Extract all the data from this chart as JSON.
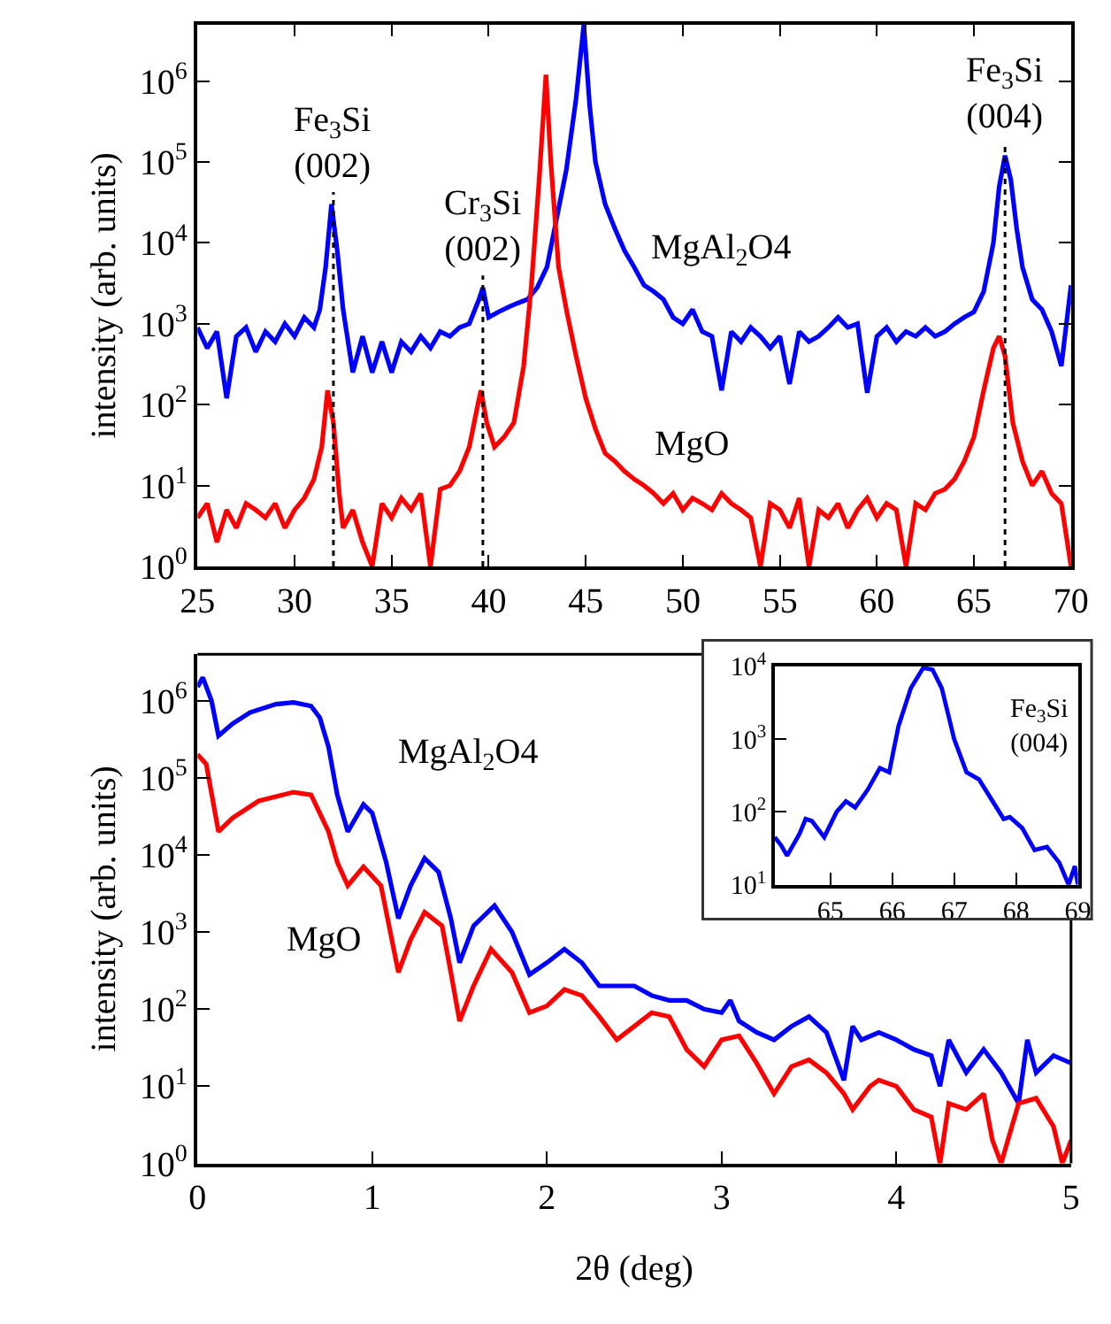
{
  "chart_data": [
    {
      "type": "line",
      "ylabel": "intensity (arb. units)",
      "log": "y",
      "marker": "none",
      "line_style": "solid",
      "xlim": [
        25,
        70
      ],
      "xticks": [
        25,
        30,
        35,
        40,
        45,
        50,
        55,
        60,
        65,
        70
      ],
      "ylim": [
        1,
        5000000
      ],
      "yticks": [
        {
          "value": 1,
          "label": "10$^{0}$"
        },
        {
          "value": 10,
          "label": "10$^{1}$"
        },
        {
          "value": 100,
          "label": "10$^{2}$"
        },
        {
          "value": 1000,
          "label": "10$^{3}$"
        },
        {
          "value": 10000,
          "label": "10$^{4}$"
        },
        {
          "value": 100000,
          "label": "10$^{5}$"
        },
        {
          "value": 1000000,
          "label": "10$^{6}$"
        }
      ],
      "ref_lines": [
        {
          "axis": "x",
          "value": 32,
          "label": "Fe$_{3}$Si\n(002)",
          "color": "#000000",
          "line_style": "dotted"
        },
        {
          "axis": "x",
          "value": 39.7,
          "label": "Cr$_{3}$Si\n(002)",
          "color": "#000000",
          "line_style": "dotted"
        },
        {
          "axis": "x",
          "value": 66.6,
          "label": "Fe$_{3}$Si\n(004)",
          "color": "#000000",
          "line_style": "dotted"
        }
      ],
      "series": [
        {
          "name": "MgAl$_{2}$O4",
          "color": "#0000ff",
          "x": [
            25,
            25.5,
            26,
            26.5,
            27,
            27.5,
            28,
            28.5,
            29,
            29.5,
            30,
            30.5,
            31,
            31.3,
            31.6,
            31.9,
            32.2,
            32.5,
            33,
            33.5,
            34,
            34.5,
            35,
            35.5,
            36,
            36.5,
            37,
            37.5,
            38,
            38.5,
            39,
            39.5,
            39.7,
            40,
            40.5,
            41,
            41.5,
            42,
            42.5,
            43,
            43.5,
            44,
            44.5,
            44.9,
            45.2,
            45.5,
            46,
            46.5,
            47,
            47.5,
            48,
            48.5,
            49,
            49.5,
            50,
            50.5,
            51,
            51.5,
            52,
            52.5,
            53,
            53.5,
            54,
            54.5,
            55,
            55.5,
            56,
            56.5,
            57,
            57.5,
            58,
            58.5,
            59,
            59.5,
            60,
            60.5,
            61,
            61.5,
            62,
            62.5,
            63,
            63.5,
            64,
            64.5,
            65,
            65.5,
            66,
            66.3,
            66.6,
            66.9,
            67.2,
            67.5,
            68,
            68.5,
            69,
            69.5,
            70
          ],
          "values": [
            900,
            500,
            800,
            120,
            700,
            900,
            450,
            800,
            600,
            1000,
            700,
            1200,
            900,
            1500,
            5000,
            30000,
            8000,
            1500,
            250,
            700,
            250,
            600,
            250,
            600,
            450,
            700,
            500,
            800,
            700,
            900,
            1000,
            2000,
            2800,
            1200,
            1400,
            1600,
            1800,
            2000,
            2800,
            5000,
            20000,
            80000,
            600000,
            5000000,
            500000,
            100000,
            30000,
            15000,
            8000,
            5000,
            3000,
            2500,
            2000,
            1200,
            1000,
            1500,
            800,
            700,
            150,
            800,
            600,
            900,
            700,
            500,
            700,
            180,
            800,
            600,
            700,
            900,
            1200,
            900,
            1000,
            140,
            700,
            900,
            600,
            800,
            700,
            900,
            700,
            800,
            1000,
            1200,
            1400,
            2500,
            10000,
            50000,
            120000,
            60000,
            15000,
            5000,
            2000,
            1500,
            800,
            300,
            3000
          ]
        },
        {
          "name": "MgO",
          "color": "#ff0000",
          "x": [
            25,
            25.5,
            26,
            26.5,
            27,
            27.5,
            28,
            28.5,
            29,
            29.5,
            30,
            30.5,
            31,
            31.4,
            31.7,
            32,
            32.3,
            32.5,
            33,
            33.5,
            34,
            34.5,
            35,
            35.5,
            36,
            36.5,
            37,
            37.5,
            38,
            38.5,
            39,
            39.4,
            39.6,
            39.9,
            40.3,
            40.8,
            41.3,
            41.8,
            42.2,
            42.6,
            42.95,
            43.2,
            43.6,
            44,
            44.5,
            45,
            45.5,
            46,
            46.5,
            47,
            47.5,
            48,
            48.5,
            49,
            49.5,
            50,
            50.5,
            51,
            51.5,
            52,
            52.5,
            53,
            53.5,
            54,
            54.5,
            55,
            55.5,
            56,
            56.5,
            57,
            57.5,
            58,
            58.5,
            59,
            59.5,
            60,
            60.5,
            61,
            61.5,
            62,
            62.5,
            63,
            63.5,
            64,
            64.5,
            65,
            65.5,
            66,
            66.3,
            66.6,
            67,
            67.5,
            68,
            68.5,
            69,
            69.5,
            70
          ],
          "values": [
            4,
            6,
            2,
            5,
            3,
            6,
            5,
            4,
            6,
            3,
            5,
            7,
            12,
            30,
            150,
            60,
            8,
            3,
            5,
            2,
            1,
            6,
            4,
            7,
            5,
            8,
            1,
            9,
            10,
            15,
            30,
            90,
            150,
            60,
            30,
            40,
            60,
            300,
            3000,
            60000,
            1200000,
            100000,
            5000,
            1500,
            400,
            120,
            50,
            25,
            20,
            15,
            12,
            10,
            8,
            6,
            8,
            5,
            7,
            6,
            5,
            8,
            6,
            5,
            4,
            1,
            6,
            5,
            3,
            7,
            1,
            5,
            4,
            6,
            3,
            5,
            7,
            4,
            6,
            5,
            1,
            6,
            5,
            8,
            9,
            12,
            20,
            40,
            150,
            500,
            700,
            400,
            60,
            20,
            10,
            15,
            8,
            6,
            1
          ]
        }
      ]
    },
    {
      "type": "line",
      "xlabel": "2θ (deg)",
      "ylabel": "intensity (arb. units)",
      "log": "y",
      "marker": "none",
      "line_style": "solid",
      "xlim": [
        0,
        5
      ],
      "xticks": [
        0,
        1,
        2,
        3,
        4,
        5
      ],
      "ylim": [
        1,
        4000000
      ],
      "yticks": [
        {
          "value": 1,
          "label": "10$^{0}$"
        },
        {
          "value": 10,
          "label": "10$^{1}$"
        },
        {
          "value": 100,
          "label": "10$^{2}$"
        },
        {
          "value": 1000,
          "label": "10$^{3}$"
        },
        {
          "value": 10000,
          "label": "10$^{4}$"
        },
        {
          "value": 100000,
          "label": "10$^{5}$"
        },
        {
          "value": 1000000,
          "label": "10$^{6}$"
        }
      ],
      "series": [
        {
          "name": "MgAl$_{2}$O4",
          "color": "#0000ff",
          "x": [
            0,
            0.03,
            0.08,
            0.12,
            0.2,
            0.3,
            0.45,
            0.55,
            0.65,
            0.7,
            0.75,
            0.8,
            0.86,
            0.95,
            1.0,
            1.08,
            1.15,
            1.22,
            1.3,
            1.38,
            1.45,
            1.5,
            1.58,
            1.7,
            1.8,
            1.9,
            2.0,
            2.1,
            2.2,
            2.3,
            2.4,
            2.5,
            2.6,
            2.7,
            2.8,
            2.9,
            3.0,
            3.05,
            3.1,
            3.2,
            3.3,
            3.4,
            3.5,
            3.6,
            3.7,
            3.75,
            3.8,
            3.9,
            4.0,
            4.1,
            4.2,
            4.25,
            4.3,
            4.4,
            4.5,
            4.6,
            4.7,
            4.75,
            4.8,
            4.9,
            5.0
          ],
          "values": [
            1500000,
            2000000,
            1000000,
            350000,
            500000,
            700000,
            900000,
            950000,
            850000,
            600000,
            250000,
            60000,
            20000,
            45000,
            35000,
            8000,
            1500,
            4000,
            9000,
            6000,
            1500,
            400,
            1200,
            2200,
            1000,
            280,
            400,
            600,
            400,
            200,
            200,
            200,
            150,
            130,
            130,
            100,
            90,
            130,
            70,
            50,
            40,
            60,
            80,
            50,
            12,
            60,
            40,
            50,
            40,
            30,
            25,
            10,
            40,
            15,
            30,
            15,
            6,
            40,
            15,
            25,
            20
          ]
        },
        {
          "name": "MgO",
          "color": "#ff0000",
          "x": [
            0,
            0.05,
            0.12,
            0.2,
            0.35,
            0.55,
            0.65,
            0.75,
            0.8,
            0.86,
            0.95,
            1.05,
            1.15,
            1.22,
            1.3,
            1.4,
            1.45,
            1.5,
            1.58,
            1.68,
            1.8,
            1.9,
            2.0,
            2.1,
            2.2,
            2.3,
            2.4,
            2.5,
            2.6,
            2.7,
            2.8,
            2.9,
            3.0,
            3.1,
            3.2,
            3.3,
            3.4,
            3.5,
            3.6,
            3.7,
            3.75,
            3.85,
            3.9,
            4.0,
            4.1,
            4.2,
            4.25,
            4.3,
            4.4,
            4.5,
            4.55,
            4.6,
            4.7,
            4.8,
            4.9,
            4.95,
            5.0
          ],
          "values": [
            200000,
            150000,
            20000,
            30000,
            50000,
            65000,
            60000,
            20000,
            8000,
            4000,
            7000,
            4000,
            300,
            800,
            1800,
            1200,
            300,
            70,
            200,
            600,
            300,
            90,
            110,
            180,
            150,
            80,
            40,
            60,
            90,
            80,
            30,
            18,
            40,
            45,
            20,
            8,
            18,
            22,
            15,
            8,
            5,
            10,
            12,
            10,
            5,
            4,
            1,
            6,
            5,
            8,
            2,
            1,
            6,
            7,
            3,
            1,
            2
          ]
        }
      ]
    },
    {
      "type": "line",
      "log": "y",
      "marker": "none",
      "line_style": "solid",
      "xlim": [
        64.1,
        69
      ],
      "xticks": [
        65,
        66,
        67,
        68,
        69
      ],
      "ylim": [
        10,
        10000
      ],
      "yticks": [
        {
          "value": 10,
          "label": "10$^{1}$"
        },
        {
          "value": 100,
          "label": "10$^{2}$"
        },
        {
          "value": 1000,
          "label": "10$^{3}$"
        },
        {
          "value": 10000,
          "label": "10$^{4}$"
        }
      ],
      "annotations": [
        "Fe$_{3}$Si\n(004)"
      ],
      "series": [
        {
          "color": "#0000ff",
          "x": [
            64.1,
            64.2,
            64.3,
            64.5,
            64.6,
            64.7,
            64.9,
            65.1,
            65.25,
            65.4,
            65.6,
            65.8,
            65.95,
            66.1,
            66.3,
            66.5,
            66.65,
            66.8,
            67.0,
            67.2,
            67.4,
            67.6,
            67.8,
            67.9,
            68.1,
            68.3,
            68.5,
            68.7,
            68.85,
            68.95,
            69.0
          ],
          "values": [
            45,
            35,
            25,
            50,
            80,
            75,
            45,
            100,
            140,
            115,
            200,
            400,
            350,
            1500,
            5000,
            9500,
            9000,
            5000,
            1000,
            350,
            280,
            150,
            80,
            85,
            60,
            30,
            33,
            20,
            10,
            18,
            10
          ]
        }
      ]
    }
  ]
}
